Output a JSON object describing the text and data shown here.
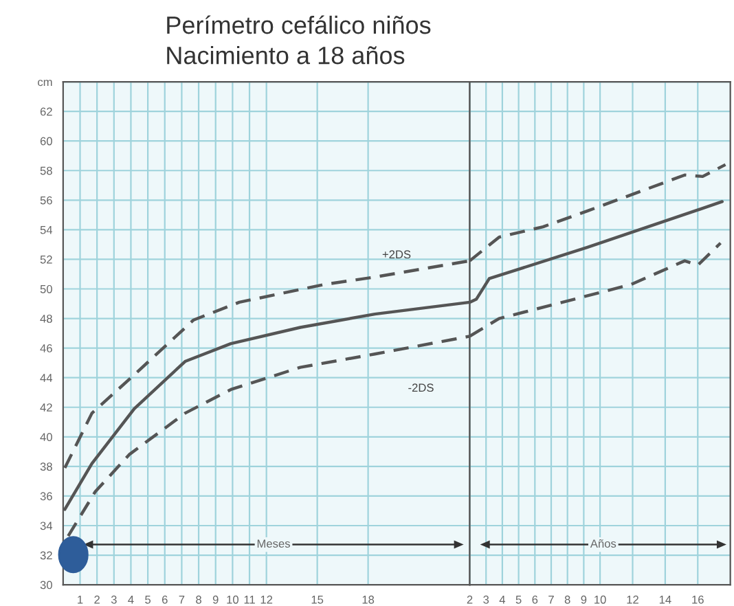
{
  "chart_data": [
    {
      "type": "line",
      "title": "Perímetro cefálico niños",
      "subtitle": "Nacimiento a 18 años",
      "xlim": [
        0,
        24
      ],
      "ylim": [
        30,
        64
      ],
      "xticks": [
        1,
        2,
        3,
        4,
        5,
        6,
        7,
        8,
        9,
        10,
        11,
        12,
        15,
        18
      ],
      "yticks": [
        30,
        32,
        34,
        36,
        38,
        40,
        42,
        44,
        46,
        48,
        50,
        52,
        54,
        56,
        58,
        60,
        62,
        {
          "value": 64,
          "label": "cm"
        }
      ],
      "grid": true,
      "marker": "none",
      "series": [
        {
          "color": "#555555",
          "line_style": "solid",
          "x": [
            0.1,
            1.7,
            4.2,
            7.2,
            9.9,
            14,
            18.4,
            24
          ],
          "values": [
            35.1,
            38.2,
            41.9,
            45.1,
            46.3,
            47.4,
            48.3,
            49.1
          ]
        },
        {
          "color": "#555555",
          "line_style": "dashed",
          "x": [
            0.1,
            1.7,
            4.2,
            7.7,
            10.4,
            15.4,
            18.4,
            24
          ],
          "values": [
            37.9,
            41.6,
            44.2,
            47.9,
            49.1,
            50.3,
            50.8,
            51.9
          ]
        },
        {
          "color": "#555555",
          "line_style": "dashed",
          "x": [
            0.3,
            1.9,
            3.9,
            7.2,
            9.9,
            14,
            18.4,
            24
          ],
          "values": [
            33.3,
            36.3,
            38.8,
            41.6,
            43.2,
            44.7,
            45.6,
            46.8
          ]
        }
      ],
      "annotations": [
        "+2DS",
        "-2DS",
        "Meses"
      ]
    },
    {
      "type": "line",
      "xlim": [
        2,
        18
      ],
      "ylim": [
        30,
        64
      ],
      "xticks": [
        2,
        3,
        4,
        5,
        6,
        7,
        8,
        9,
        10,
        12,
        14,
        16
      ],
      "yticks": [
        30,
        32,
        34,
        36,
        38,
        40,
        42,
        44,
        46,
        48,
        50,
        52,
        54,
        56,
        58,
        60,
        62,
        64
      ],
      "tick_labels": "x",
      "grid": true,
      "marker": "none",
      "series": [
        {
          "color": "#555555",
          "line_style": "solid",
          "x": [
            2,
            2.4,
            3.2,
            9.2,
            17.5
          ],
          "values": [
            49.1,
            49.3,
            50.7,
            52.8,
            55.9
          ]
        },
        {
          "color": "#555555",
          "line_style": "dashed",
          "x": [
            2,
            3.8,
            6.5,
            9.3,
            15.2,
            16.3,
            17.7
          ],
          "values": [
            51.9,
            53.5,
            54.2,
            55.3,
            57.7,
            57.6,
            58.4
          ]
        },
        {
          "color": "#555555",
          "line_style": "dashed",
          "x": [
            2,
            3.8,
            7,
            11.9,
            15.2,
            16,
            17.4
          ],
          "values": [
            46.8,
            48.0,
            48.9,
            50.3,
            51.9,
            51.6,
            53.1
          ]
        }
      ],
      "annotations": [
        "Años"
      ]
    }
  ]
}
